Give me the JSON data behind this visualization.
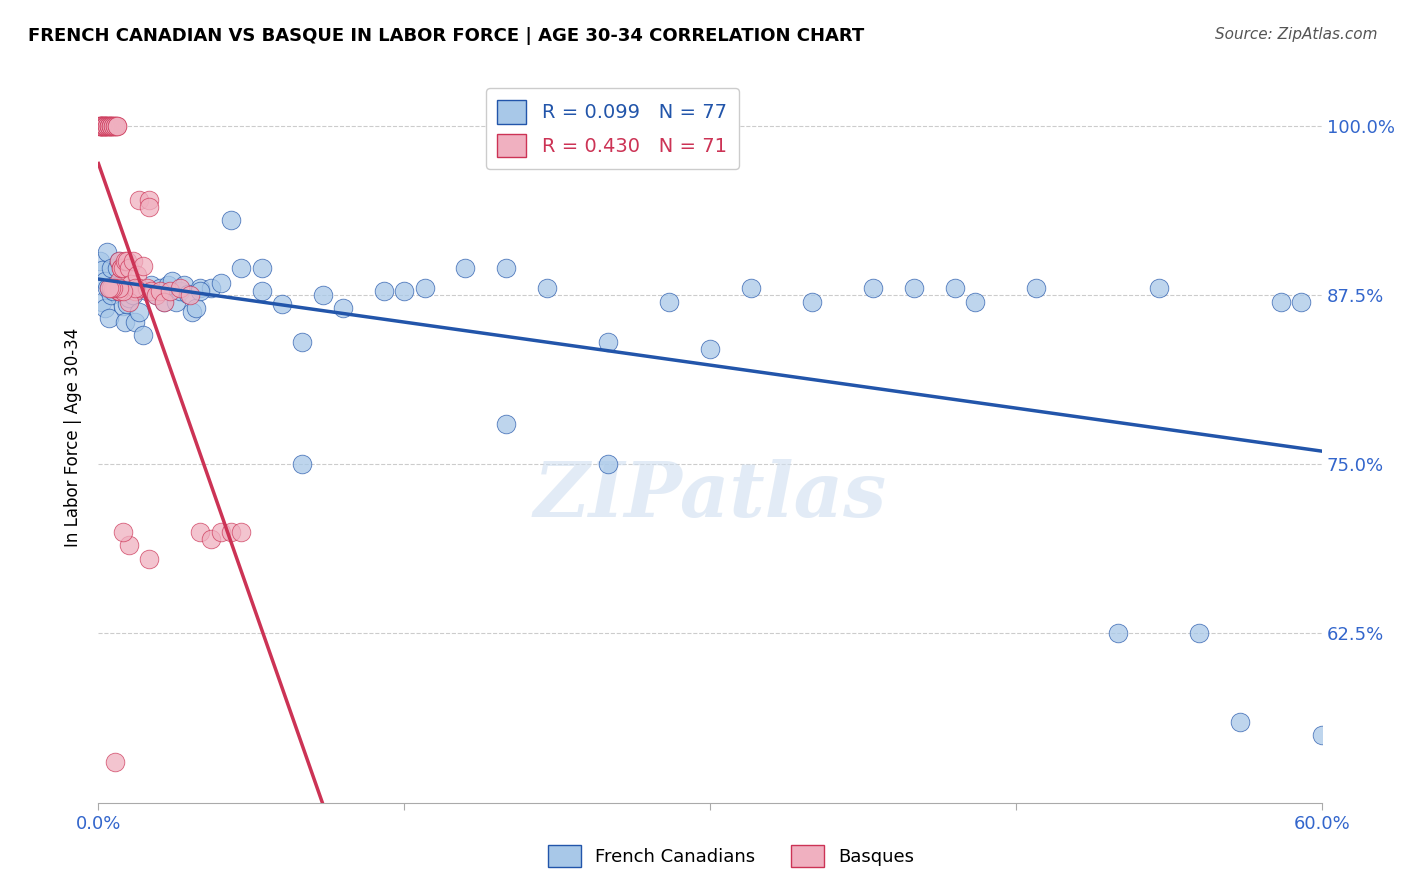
{
  "title": "FRENCH CANADIAN VS BASQUE IN LABOR FORCE | AGE 30-34 CORRELATION CHART",
  "source": "Source: ZipAtlas.com",
  "ylabel_text": "In Labor Force | Age 30-34",
  "xlim": [
    0.0,
    0.6
  ],
  "ylim": [
    0.5,
    1.04
  ],
  "blue_R": 0.099,
  "blue_N": 77,
  "pink_R": 0.43,
  "pink_N": 71,
  "legend_label_blue": "French Canadians",
  "legend_label_pink": "Basques",
  "blue_color": "#a8c8e8",
  "pink_color": "#f0b0c0",
  "blue_line_color": "#2255aa",
  "pink_line_color": "#cc3355",
  "watermark": "ZIPatlas",
  "blue_x": [
    0.001,
    0.002,
    0.002,
    0.003,
    0.003,
    0.004,
    0.004,
    0.005,
    0.005,
    0.006,
    0.006,
    0.007,
    0.008,
    0.009,
    0.01,
    0.01,
    0.011,
    0.012,
    0.013,
    0.014,
    0.015,
    0.016,
    0.017,
    0.018,
    0.02,
    0.022,
    0.024,
    0.026,
    0.028,
    0.03,
    0.032,
    0.034,
    0.036,
    0.038,
    0.04,
    0.042,
    0.044,
    0.046,
    0.048,
    0.05,
    0.055,
    0.06,
    0.065,
    0.07,
    0.08,
    0.09,
    0.1,
    0.11,
    0.12,
    0.14,
    0.16,
    0.18,
    0.2,
    0.22,
    0.25,
    0.28,
    0.32,
    0.35,
    0.38,
    0.4,
    0.43,
    0.46,
    0.5,
    0.52,
    0.54,
    0.56,
    0.58,
    0.59,
    0.6,
    0.42,
    0.3,
    0.25,
    0.2,
    0.15,
    0.1,
    0.08,
    0.05
  ],
  "blue_y": [
    0.9,
    0.893,
    0.87,
    0.885,
    0.865,
    0.88,
    0.907,
    0.88,
    0.858,
    0.895,
    0.875,
    0.878,
    0.882,
    0.895,
    0.9,
    0.878,
    0.878,
    0.867,
    0.855,
    0.868,
    0.873,
    0.88,
    0.875,
    0.855,
    0.862,
    0.845,
    0.878,
    0.882,
    0.875,
    0.88,
    0.87,
    0.882,
    0.885,
    0.87,
    0.878,
    0.882,
    0.876,
    0.862,
    0.865,
    0.88,
    0.88,
    0.884,
    0.93,
    0.895,
    0.878,
    0.868,
    0.84,
    0.875,
    0.865,
    0.878,
    0.88,
    0.895,
    0.78,
    0.88,
    0.84,
    0.87,
    0.88,
    0.87,
    0.88,
    0.88,
    0.87,
    0.88,
    0.625,
    0.88,
    0.625,
    0.56,
    0.87,
    0.87,
    0.55,
    0.88,
    0.835,
    0.75,
    0.895,
    0.878,
    0.75,
    0.895,
    0.878
  ],
  "pink_x": [
    0.001,
    0.001,
    0.001,
    0.002,
    0.002,
    0.002,
    0.002,
    0.002,
    0.003,
    0.003,
    0.003,
    0.003,
    0.003,
    0.004,
    0.004,
    0.005,
    0.005,
    0.005,
    0.006,
    0.006,
    0.006,
    0.007,
    0.007,
    0.008,
    0.008,
    0.009,
    0.009,
    0.01,
    0.01,
    0.01,
    0.011,
    0.011,
    0.012,
    0.013,
    0.014,
    0.015,
    0.016,
    0.017,
    0.018,
    0.019,
    0.02,
    0.022,
    0.024,
    0.026,
    0.028,
    0.03,
    0.032,
    0.035,
    0.04,
    0.045,
    0.05,
    0.055,
    0.06,
    0.065,
    0.07,
    0.02,
    0.025,
    0.025,
    0.015,
    0.018,
    0.008,
    0.01,
    0.012,
    0.01,
    0.007,
    0.006,
    0.005,
    0.015,
    0.012,
    0.025,
    0.008
  ],
  "pink_y": [
    1.0,
    1.0,
    1.0,
    1.0,
    1.0,
    1.0,
    1.0,
    1.0,
    1.0,
    1.0,
    1.0,
    1.0,
    1.0,
    1.0,
    1.0,
    1.0,
    1.0,
    1.0,
    1.0,
    1.0,
    1.0,
    1.0,
    1.0,
    1.0,
    1.0,
    1.0,
    1.0,
    0.9,
    0.885,
    0.878,
    0.895,
    0.895,
    0.895,
    0.9,
    0.9,
    0.895,
    0.883,
    0.9,
    0.878,
    0.89,
    0.88,
    0.896,
    0.88,
    0.878,
    0.875,
    0.878,
    0.87,
    0.878,
    0.88,
    0.875,
    0.7,
    0.695,
    0.7,
    0.7,
    0.7,
    0.945,
    0.945,
    0.94,
    0.87,
    0.88,
    0.88,
    0.878,
    0.878,
    0.88,
    0.88,
    0.88,
    0.88,
    0.69,
    0.7,
    0.68,
    0.53
  ]
}
